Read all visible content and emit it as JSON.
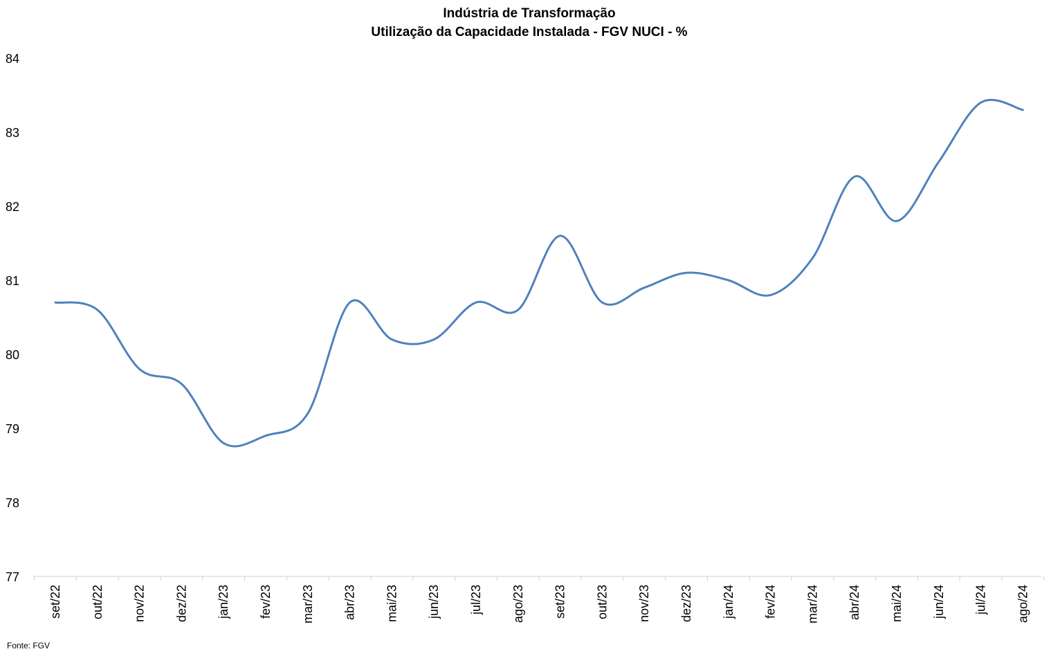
{
  "chart_data": {
    "type": "line",
    "title": "Indústria de Transformação",
    "subtitle": "Utilização da Capacidade Instalada - FGV NUCI - %",
    "xlabel": "",
    "ylabel": "",
    "categories": [
      "set/22",
      "out/22",
      "nov/22",
      "dez/22",
      "jan/23",
      "fev/23",
      "mar/23",
      "abr/23",
      "mai/23",
      "jun/23",
      "jul/23",
      "ago/23",
      "set/23",
      "out/23",
      "nov/23",
      "dez/23",
      "jan/24",
      "fev/24",
      "mar/24",
      "abr/24",
      "mai/24",
      "jun/24",
      "jul/24",
      "ago/24"
    ],
    "series": [
      {
        "name": "",
        "values": [
          80.7,
          80.6,
          79.8,
          79.6,
          78.8,
          78.9,
          79.2,
          80.7,
          80.2,
          80.2,
          80.7,
          80.6,
          81.6,
          80.7,
          80.9,
          81.1,
          81.0,
          80.8,
          81.3,
          82.4,
          81.8,
          82.6,
          83.4,
          83.3
        ]
      }
    ],
    "ylim": [
      77,
      84
    ],
    "yticks": [
      "77",
      "78",
      "79",
      "80",
      "81",
      "82",
      "83",
      "84"
    ],
    "grid": false,
    "legend": "none",
    "line_color": "#4F81BD",
    "source": "Fonte: FGV"
  }
}
